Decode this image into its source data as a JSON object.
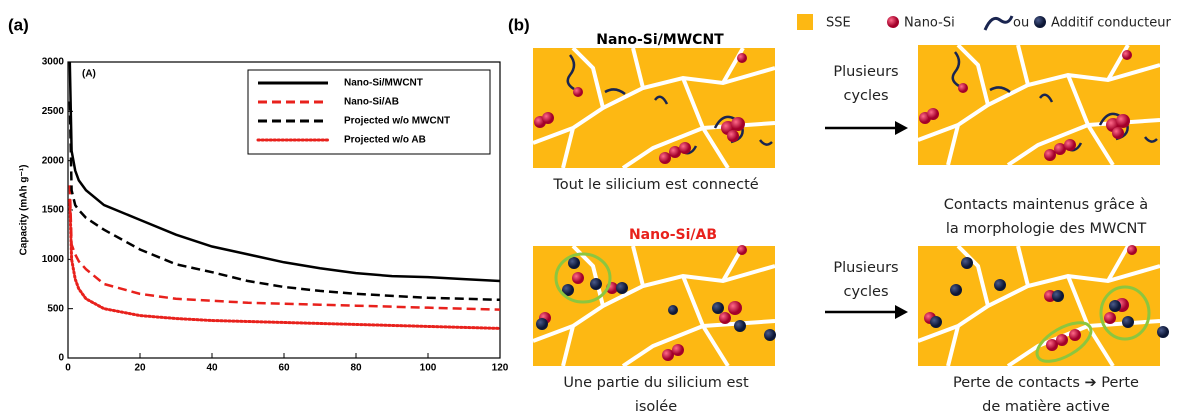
{
  "chart_data": {
    "type": "line",
    "panel_label": "(a)",
    "inner_label": "(A)",
    "y_label": "Capacity (mAh g⁻¹)",
    "x": [
      0.5,
      1,
      2,
      3,
      5,
      10,
      20,
      30,
      40,
      50,
      60,
      70,
      80,
      90,
      100,
      110,
      120
    ],
    "series": [
      {
        "name": "Nano-Si/MWCNT",
        "color": "#000000",
        "linestyle": "solid",
        "values": [
          3000,
          2100,
          1900,
          1800,
          1700,
          1550,
          1400,
          1250,
          1130,
          1050,
          970,
          910,
          860,
          830,
          820,
          800,
          780
        ]
      },
      {
        "name": "Nano-Si/AB",
        "color": "#e8211c",
        "linestyle": "dashed",
        "values": [
          1750,
          1150,
          1050,
          980,
          900,
          750,
          650,
          600,
          580,
          560,
          550,
          540,
          530,
          520,
          510,
          500,
          490
        ]
      },
      {
        "name": "Projected w/o MWCNT",
        "color": "#000000",
        "linestyle": "dashed",
        "values": [
          2600,
          1700,
          1550,
          1500,
          1420,
          1300,
          1100,
          950,
          870,
          780,
          720,
          680,
          650,
          630,
          610,
          600,
          590
        ]
      },
      {
        "name": "Projected w/o AB",
        "color": "#e8211c",
        "linestyle": "dotted",
        "values": [
          1600,
          1000,
          800,
          700,
          600,
          500,
          430,
          400,
          380,
          370,
          360,
          350,
          340,
          330,
          320,
          310,
          300
        ]
      }
    ],
    "xlim": [
      0,
      120
    ],
    "xticks": [
      0,
      20,
      40,
      60,
      80,
      100,
      120
    ],
    "ylim": [
      0,
      3000
    ],
    "yticks": [
      0,
      500,
      1000,
      1500,
      2000,
      2500,
      3000
    ],
    "legend": "top-right"
  },
  "diagram": {
    "panel_label": "(b)",
    "legend": {
      "sse": "SSE",
      "nano_si": "Nano-Si",
      "or": "ou",
      "additive": "Additif conducteur"
    },
    "rows": [
      {
        "title": "Nano-Si/MWCNT",
        "arrow_label": [
          "Plusieurs",
          "cycles"
        ],
        "before_caption": [
          "Tout le silicium est connecté"
        ],
        "after_caption": [
          "Contacts maintenus grâce à",
          "la morphologie des MWCNT"
        ]
      },
      {
        "title": "Nano-Si/AB",
        "arrow_label": [
          "Plusieurs",
          "cycles"
        ],
        "before_caption": [
          "Une partie du silicium est",
          "isolée"
        ],
        "after_caption": [
          "Perte de contacts ➔ Perte",
          "de matière active"
        ]
      }
    ]
  }
}
